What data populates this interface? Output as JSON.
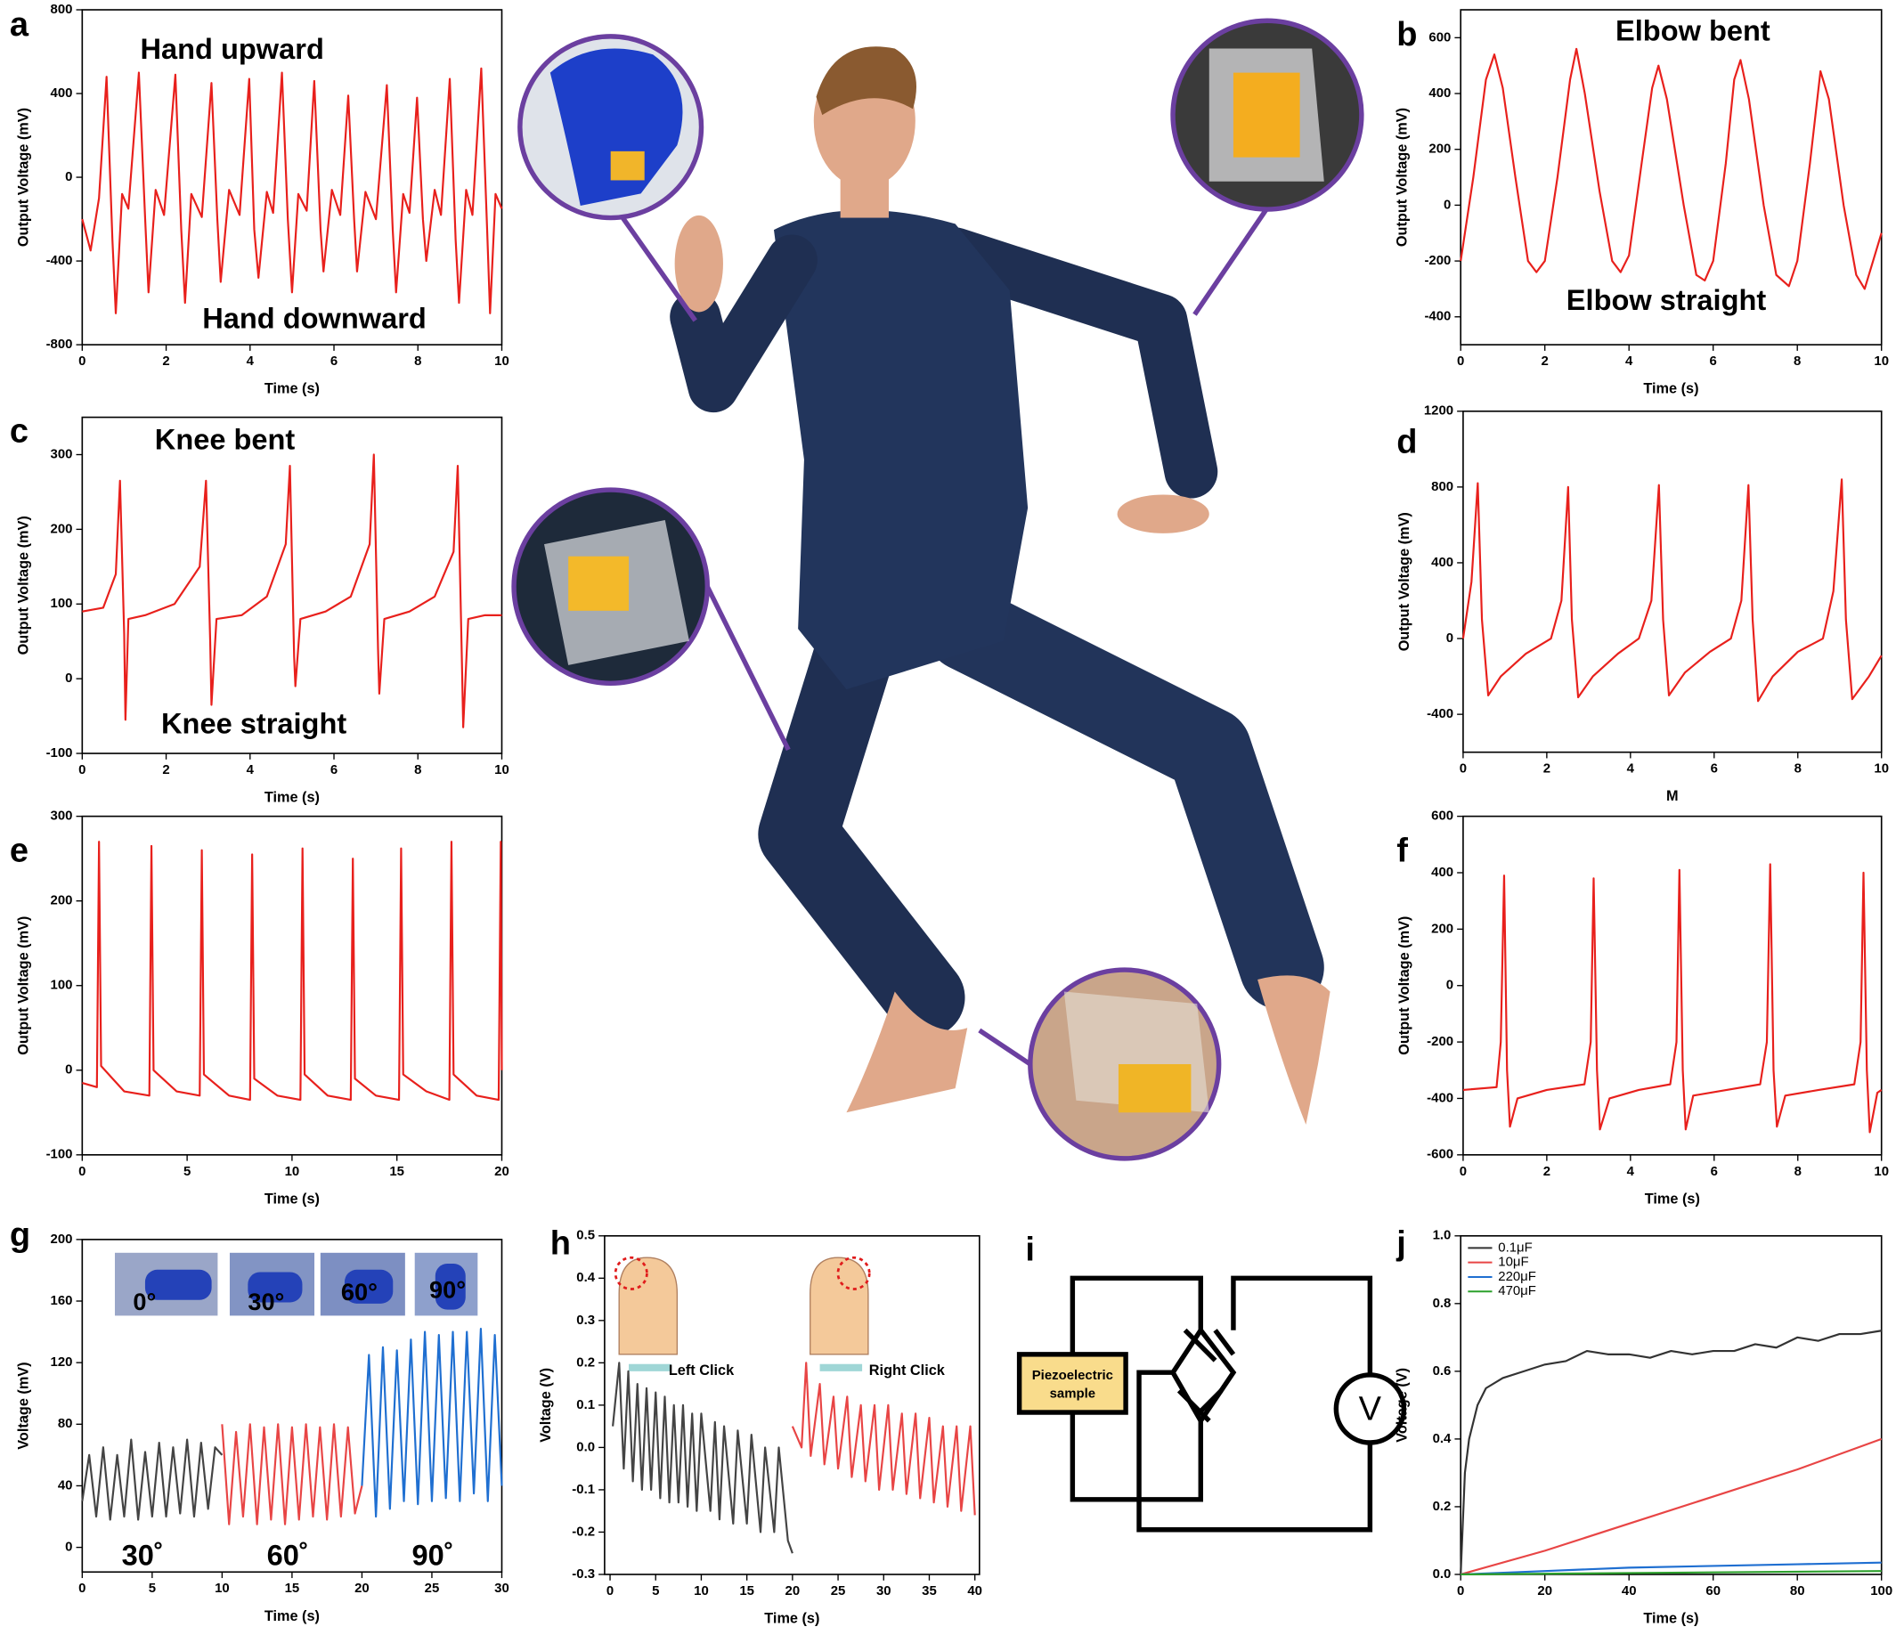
{
  "chart_data": [
    {
      "type": "line",
      "panel_label": "a",
      "xlabel": "Time (s)",
      "ylabel": "Output Voltage (mV)",
      "annotations": [
        "Hand upward",
        "Hand downward"
      ],
      "xlim": [
        0,
        10
      ],
      "ylim": [
        -800,
        800
      ],
      "xticks": [
        0,
        2,
        4,
        6,
        8,
        10
      ],
      "yticks": [
        -800,
        -400,
        0,
        400,
        800
      ],
      "x": [
        0,
        0.2,
        0.4,
        0.58,
        0.72,
        0.8,
        0.95,
        1.1,
        1.35,
        1.5,
        1.58,
        1.75,
        1.95,
        2.22,
        2.36,
        2.45,
        2.6,
        2.85,
        3.08,
        3.22,
        3.3,
        3.5,
        3.75,
        3.98,
        4.1,
        4.2,
        4.4,
        4.55,
        4.76,
        4.9,
        5.0,
        5.15,
        5.35,
        5.53,
        5.68,
        5.75,
        5.95,
        6.15,
        6.34,
        6.48,
        6.55,
        6.75,
        7.0,
        7.26,
        7.4,
        7.48,
        7.65,
        7.8,
        7.98,
        8.12,
        8.2,
        8.4,
        8.55,
        8.76,
        8.9,
        8.98,
        9.15,
        9.3,
        9.51,
        9.65,
        9.72,
        9.85,
        10
      ],
      "series": [
        {
          "color": "#e8201c",
          "values": [
            -200,
            -350,
            -100,
            480,
            -300,
            -650,
            -80,
            -150,
            500,
            -200,
            -550,
            -60,
            -180,
            490,
            -250,
            -600,
            -80,
            -190,
            450,
            -200,
            -500,
            -60,
            -180,
            470,
            -250,
            -480,
            -70,
            -170,
            500,
            -200,
            -550,
            -80,
            -160,
            460,
            -250,
            -450,
            -60,
            -180,
            390,
            -200,
            -450,
            -70,
            -200,
            440,
            -250,
            -550,
            -80,
            -170,
            380,
            -200,
            -400,
            -60,
            -180,
            470,
            -300,
            -600,
            -60,
            -180,
            520,
            -250,
            -650,
            -80,
            -150
          ]
        }
      ]
    },
    {
      "type": "line",
      "panel_label": "b",
      "xlabel": "Time (s)",
      "ylabel": "Output Voltage (mV)",
      "annotations": [
        "Elbow bent",
        "Elbow straight"
      ],
      "xlim": [
        0,
        10
      ],
      "ylim": [
        -500,
        700
      ],
      "xticks": [
        0,
        2,
        4,
        6,
        8,
        10
      ],
      "yticks": [
        -400,
        -200,
        0,
        200,
        400,
        600
      ],
      "x": [
        0,
        0.3,
        0.6,
        0.8,
        1.0,
        1.3,
        1.6,
        1.8,
        2.0,
        2.3,
        2.6,
        2.75,
        2.95,
        3.3,
        3.6,
        3.8,
        4.0,
        4.3,
        4.55,
        4.7,
        4.9,
        5.3,
        5.6,
        5.8,
        6.0,
        6.3,
        6.5,
        6.65,
        6.85,
        7.2,
        7.5,
        7.8,
        8.0,
        8.3,
        8.55,
        8.75,
        9.1,
        9.4,
        9.6,
        9.8,
        10
      ],
      "series": [
        {
          "color": "#e8201c",
          "values": [
            -200,
            100,
            450,
            540,
            420,
            100,
            -200,
            -240,
            -200,
            100,
            450,
            560,
            400,
            50,
            -200,
            -240,
            -180,
            150,
            420,
            500,
            380,
            0,
            -250,
            -270,
            -200,
            150,
            450,
            520,
            380,
            0,
            -250,
            -290,
            -200,
            150,
            480,
            380,
            0,
            -250,
            -300,
            -200,
            -100
          ]
        }
      ]
    },
    {
      "type": "line",
      "panel_label": "c",
      "xlabel": "Time (s)",
      "ylabel": "Output Voltage (mV)",
      "annotations": [
        "Knee bent",
        "Knee straight"
      ],
      "xlim": [
        0,
        10
      ],
      "ylim": [
        -100,
        350
      ],
      "xticks": [
        0,
        2,
        4,
        6,
        8,
        10
      ],
      "yticks": [
        -100,
        0,
        100,
        200,
        300
      ],
      "x": [
        0,
        0.5,
        0.8,
        0.9,
        1.0,
        1.03,
        1.1,
        1.5,
        2.2,
        2.8,
        2.95,
        3.05,
        3.08,
        3.2,
        3.8,
        4.4,
        4.85,
        4.95,
        5.05,
        5.08,
        5.2,
        5.8,
        6.4,
        6.85,
        6.95,
        7.05,
        7.08,
        7.2,
        7.8,
        8.4,
        8.85,
        8.95,
        9.05,
        9.08,
        9.2,
        9.6,
        10
      ],
      "series": [
        {
          "color": "#e8201c",
          "values": [
            90,
            95,
            140,
            265,
            60,
            -55,
            80,
            85,
            100,
            150,
            265,
            50,
            -35,
            80,
            85,
            110,
            180,
            285,
            30,
            -10,
            80,
            90,
            110,
            180,
            300,
            40,
            -20,
            80,
            90,
            110,
            170,
            285,
            20,
            -65,
            80,
            85,
            85
          ]
        }
      ]
    },
    {
      "type": "line",
      "panel_label": "d",
      "xlabel": "M",
      "ylabel": "Output Voltage (mV)",
      "annotations": [],
      "xlim": [
        0,
        10
      ],
      "ylim": [
        -600,
        1200
      ],
      "xticks": [
        0,
        2,
        4,
        6,
        8,
        10
      ],
      "yticks": [
        -400,
        0,
        400,
        800,
        1200
      ],
      "x": [
        0,
        0.2,
        0.35,
        0.45,
        0.6,
        0.9,
        1.5,
        2.1,
        2.35,
        2.51,
        2.6,
        2.75,
        3.1,
        3.7,
        4.2,
        4.5,
        4.68,
        4.78,
        4.92,
        5.3,
        5.9,
        6.4,
        6.65,
        6.82,
        6.92,
        7.05,
        7.4,
        8.0,
        8.6,
        8.85,
        9.05,
        9.15,
        9.3,
        9.7,
        10
      ],
      "series": [
        {
          "color": "#e8201c",
          "values": [
            0,
            300,
            820,
            100,
            -300,
            -200,
            -80,
            0,
            200,
            800,
            100,
            -310,
            -200,
            -80,
            0,
            200,
            810,
            100,
            -300,
            -180,
            -70,
            0,
            200,
            810,
            100,
            -330,
            -200,
            -70,
            0,
            250,
            840,
            100,
            -320,
            -200,
            -90
          ]
        }
      ]
    },
    {
      "type": "line",
      "panel_label": "e",
      "xlabel": "Time (s)",
      "ylabel": "Output Voltage (mV)",
      "annotations": [],
      "xlim": [
        0,
        20
      ],
      "ylim": [
        -100,
        300
      ],
      "xticks": [
        0,
        5,
        10,
        15,
        20
      ],
      "yticks": [
        -100,
        0,
        100,
        200,
        300
      ],
      "x": [
        0,
        0.7,
        0.8,
        0.9,
        2.0,
        3.2,
        3.3,
        3.4,
        4.5,
        5.6,
        5.7,
        5.8,
        7.0,
        8.0,
        8.1,
        8.2,
        9.3,
        10.4,
        10.5,
        10.6,
        11.7,
        12.8,
        12.9,
        13.0,
        14.0,
        15.1,
        15.2,
        15.3,
        16.4,
        17.5,
        17.6,
        17.7,
        18.8,
        19.85,
        19.95,
        20
      ],
      "series": [
        {
          "color": "#e8201c",
          "values": [
            -15,
            -20,
            270,
            5,
            -25,
            -30,
            265,
            0,
            -25,
            -30,
            260,
            -5,
            -30,
            -35,
            255,
            -10,
            -30,
            -35,
            262,
            -5,
            -30,
            -35,
            250,
            -10,
            -30,
            -35,
            262,
            -5,
            -25,
            -35,
            270,
            -5,
            -30,
            -35,
            270,
            0
          ]
        }
      ]
    },
    {
      "type": "line",
      "panel_label": "f",
      "xlabel": "Time (s)",
      "ylabel": "Output Voltage (mV)",
      "annotations": [],
      "xlim": [
        0,
        10
      ],
      "ylim": [
        -600,
        600
      ],
      "xticks": [
        0,
        2,
        4,
        6,
        8,
        10
      ],
      "yticks": [
        -600,
        -400,
        -200,
        0,
        200,
        400,
        600
      ],
      "x": [
        0,
        0.8,
        0.9,
        0.98,
        1.05,
        1.12,
        1.3,
        2.0,
        2.9,
        3.05,
        3.12,
        3.2,
        3.27,
        3.5,
        4.2,
        4.95,
        5.1,
        5.17,
        5.25,
        5.32,
        5.5,
        6.3,
        7.1,
        7.26,
        7.34,
        7.42,
        7.5,
        7.7,
        8.5,
        9.35,
        9.5,
        9.57,
        9.65,
        9.72,
        9.9,
        10
      ],
      "series": [
        {
          "color": "#e8201c",
          "values": [
            -370,
            -360,
            -200,
            390,
            -300,
            -500,
            -400,
            -370,
            -350,
            -200,
            380,
            -300,
            -510,
            -400,
            -370,
            -350,
            -200,
            410,
            -300,
            -510,
            -390,
            -370,
            -350,
            -200,
            430,
            -300,
            -500,
            -390,
            -370,
            -350,
            -200,
            400,
            -300,
            -520,
            -380,
            -370
          ]
        }
      ]
    },
    {
      "type": "line",
      "panel_label": "g",
      "xlabel": "Time (s)",
      "ylabel": "Voltage (mV)",
      "annotations": [
        "30˚",
        "60˚",
        "90˚"
      ],
      "inset_labels": [
        "0°",
        "30°",
        "60°",
        "90°"
      ],
      "xlim": [
        0,
        30
      ],
      "ylim": [
        -16,
        200
      ],
      "xticks": [
        0,
        5,
        10,
        15,
        20,
        25,
        30
      ],
      "yticks": [
        0,
        40,
        80,
        120,
        160,
        200
      ],
      "series": [
        {
          "color": "#444444",
          "x": [
            0,
            0.5,
            1,
            1.5,
            2,
            2.5,
            3,
            3.5,
            4,
            4.5,
            5,
            5.5,
            6,
            6.5,
            7,
            7.5,
            8,
            8.5,
            9,
            9.5,
            10
          ],
          "values": [
            30,
            60,
            20,
            65,
            18,
            60,
            20,
            70,
            18,
            62,
            20,
            68,
            20,
            65,
            22,
            70,
            20,
            68,
            25,
            65,
            60
          ]
        },
        {
          "color": "#e84545",
          "x": [
            10,
            10.5,
            11,
            11.5,
            12,
            12.5,
            13,
            13.5,
            14,
            14.5,
            15,
            15.5,
            16,
            16.5,
            17,
            17.5,
            18,
            18.5,
            19,
            19.5,
            20
          ],
          "values": [
            80,
            15,
            75,
            20,
            80,
            15,
            78,
            18,
            80,
            15,
            78,
            18,
            80,
            20,
            78,
            18,
            80,
            20,
            78,
            22,
            40
          ]
        },
        {
          "color": "#1f6fd1",
          "x": [
            20,
            20.5,
            21,
            21.5,
            22,
            22.5,
            23,
            23.5,
            24,
            24.5,
            25,
            25.5,
            26,
            26.5,
            27,
            27.5,
            28,
            28.5,
            29,
            29.5,
            30
          ],
          "values": [
            40,
            125,
            20,
            130,
            25,
            128,
            30,
            135,
            28,
            140,
            30,
            138,
            32,
            140,
            30,
            140,
            35,
            142,
            30,
            138,
            40
          ]
        }
      ]
    },
    {
      "type": "line",
      "panel_label": "h",
      "xlabel": "Time (s)",
      "ylabel": "Voltage (V)",
      "annotations": [
        {
          "text": "Left Click",
          "color": "#222222"
        },
        {
          "text": "Right Click",
          "color": "#e8201c"
        }
      ],
      "xlim": [
        -0.6,
        40.5
      ],
      "ylim": [
        -0.3,
        0.5
      ],
      "xticks": [
        0,
        5,
        10,
        15,
        20,
        25,
        30,
        35,
        40
      ],
      "yticks": [
        -0.3,
        -0.2,
        -0.1,
        {
          "value": 0,
          "label": "0.0"
        },
        0.1,
        0.2,
        0.3,
        0.4,
        0.5
      ],
      "series": [
        {
          "color": "#444444",
          "x": [
            0.3,
            1,
            1.5,
            2,
            2.5,
            3,
            3.5,
            4,
            4.5,
            5,
            5.5,
            6,
            6.5,
            7,
            7.5,
            8,
            8.5,
            9,
            9.5,
            10,
            11,
            11.5,
            12,
            12.5,
            13.5,
            14,
            15,
            15.5,
            16.5,
            17,
            18,
            18.5,
            19.5,
            20
          ],
          "values": [
            0.05,
            0.2,
            -0.05,
            0.18,
            -0.08,
            0.15,
            -0.1,
            0.14,
            -0.1,
            0.13,
            -0.12,
            0.12,
            -0.13,
            0.1,
            -0.13,
            0.1,
            -0.14,
            0.08,
            -0.15,
            0.08,
            -0.15,
            0.06,
            -0.17,
            0.05,
            -0.18,
            0.04,
            -0.18,
            0.03,
            -0.2,
            0.0,
            -0.2,
            0.0,
            -0.22,
            -0.25
          ]
        },
        {
          "color": "#e84545",
          "x": [
            20,
            21,
            21.5,
            22,
            23,
            23.5,
            24.5,
            25,
            26,
            26.5,
            27.5,
            28,
            29,
            29.5,
            30.5,
            31,
            32,
            32.5,
            33.5,
            34,
            35,
            35.5,
            36.5,
            37,
            38,
            38.5,
            39.5,
            40
          ],
          "values": [
            0.05,
            0.0,
            0.2,
            -0.02,
            0.15,
            -0.04,
            0.12,
            -0.05,
            0.12,
            -0.07,
            0.1,
            -0.08,
            0.1,
            -0.1,
            0.1,
            -0.1,
            0.08,
            -0.11,
            0.08,
            -0.12,
            0.07,
            -0.13,
            0.05,
            -0.14,
            0.05,
            -0.15,
            0.05,
            -0.16
          ]
        }
      ]
    },
    {
      "type": "line",
      "panel_label": "j",
      "xlabel": "Time (s)",
      "ylabel": "Voltage (V)",
      "annotations": [],
      "legend": "upper left",
      "xlim": [
        0,
        100
      ],
      "ylim": [
        0,
        1
      ],
      "xticks": [
        0,
        20,
        40,
        60,
        80,
        100
      ],
      "yticks": [
        {
          "value": 0,
          "label": "0.0"
        },
        0.2,
        0.4,
        0.6,
        0.8,
        {
          "value": 1,
          "label": "1.0"
        }
      ],
      "series": [
        {
          "name": "0.1μF",
          "color": "#333333",
          "x": [
            0,
            1,
            2,
            4,
            6,
            10,
            15,
            20,
            25,
            30,
            35,
            40,
            45,
            50,
            55,
            60,
            65,
            70,
            75,
            80,
            85,
            90,
            95,
            100
          ],
          "values": [
            0,
            0.3,
            0.4,
            0.5,
            0.55,
            0.58,
            0.6,
            0.62,
            0.63,
            0.66,
            0.65,
            0.65,
            0.64,
            0.66,
            0.65,
            0.66,
            0.66,
            0.68,
            0.67,
            0.7,
            0.69,
            0.71,
            0.71,
            0.72
          ]
        },
        {
          "name": "10μF",
          "color": "#e84545",
          "x": [
            0,
            20,
            40,
            60,
            80,
            100
          ],
          "values": [
            0,
            0.07,
            0.15,
            0.23,
            0.31,
            0.4
          ]
        },
        {
          "name": "220μF",
          "color": "#1f6fd1",
          "x": [
            0,
            20,
            40,
            60,
            80,
            100
          ],
          "values": [
            0,
            0.01,
            0.02,
            0.025,
            0.03,
            0.035
          ]
        },
        {
          "name": "470μF",
          "color": "#2ca02c",
          "x": [
            0,
            50,
            100
          ],
          "values": [
            0,
            0.005,
            0.01
          ]
        }
      ]
    }
  ],
  "diagram": {
    "panel_label": "i",
    "box_label": [
      "Piezoelectric",
      "sample"
    ],
    "meter_label": "V"
  }
}
